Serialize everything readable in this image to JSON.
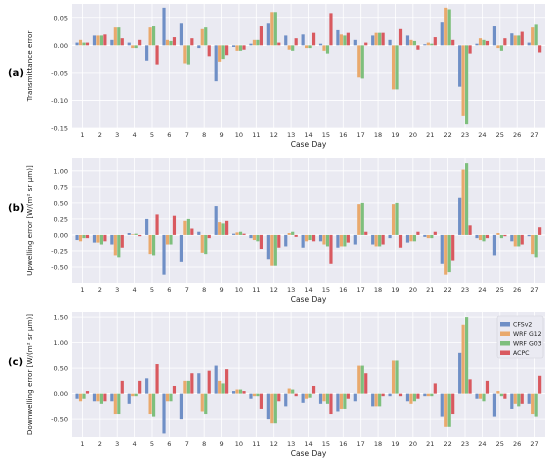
{
  "series_meta": [
    {
      "name": "CFSv2",
      "color": "#6f8fc6"
    },
    {
      "name": "WRF G12",
      "color": "#e9a96c"
    },
    {
      "name": "WRF G03",
      "color": "#7ebf7d"
    },
    {
      "name": "ACPC",
      "color": "#d9595f"
    }
  ],
  "chart_data": [
    {
      "type": "bar",
      "panel_label": "(a)",
      "xlabel": "Case Day",
      "ylabel": "Transmittance error",
      "categories": [
        "1",
        "2",
        "3",
        "4",
        "5",
        "6",
        "7",
        "8",
        "9",
        "10",
        "11",
        "12",
        "13",
        "14",
        "15",
        "16",
        "17",
        "18",
        "19",
        "20",
        "21",
        "22",
        "23",
        "24",
        "25",
        "26",
        "27"
      ],
      "ylim": [
        -0.15,
        0.075
      ],
      "yticks": [
        -0.15,
        -0.1,
        -0.05,
        0.0,
        0.05
      ],
      "ytick_labels": [
        "-0.15",
        "-0.10",
        "-0.05",
        "0.00",
        "0.05"
      ],
      "grid": true,
      "series": [
        {
          "name": "CFSv2",
          "values": [
            0.005,
            0.018,
            0.01,
            0.005,
            -0.028,
            0.068,
            0.04,
            -0.005,
            -0.065,
            -0.003,
            0.003,
            0.04,
            0.018,
            0.02,
            0.003,
            0.028,
            0.01,
            0.018,
            0.01,
            0.018,
            0.002,
            0.042,
            -0.075,
            0.003,
            0.035,
            0.022,
            0.005
          ]
        },
        {
          "name": "WRF G12",
          "values": [
            0.01,
            0.018,
            0.033,
            -0.005,
            0.033,
            0.01,
            -0.033,
            0.03,
            -0.03,
            -0.01,
            0.01,
            0.06,
            -0.008,
            -0.005,
            -0.01,
            0.02,
            -0.058,
            0.023,
            -0.08,
            0.01,
            0.005,
            0.068,
            -0.128,
            0.013,
            -0.005,
            0.018,
            0.033
          ]
        },
        {
          "name": "WRF G03",
          "values": [
            0.005,
            0.018,
            0.033,
            -0.005,
            0.035,
            0.008,
            -0.035,
            0.033,
            -0.025,
            -0.01,
            0.01,
            0.06,
            -0.01,
            -0.005,
            -0.015,
            0.018,
            -0.06,
            0.023,
            -0.08,
            0.008,
            0.003,
            0.065,
            -0.143,
            0.01,
            -0.01,
            0.018,
            0.038
          ]
        },
        {
          "name": "ACPC",
          "values": [
            0.005,
            0.02,
            0.013,
            0.01,
            -0.035,
            0.015,
            0.013,
            -0.02,
            -0.018,
            -0.008,
            0.035,
            0.005,
            0.013,
            0.023,
            0.058,
            0.023,
            0.005,
            0.023,
            0.03,
            -0.008,
            0.015,
            0.01,
            -0.015,
            0.008,
            0.013,
            0.025,
            -0.013
          ]
        }
      ]
    },
    {
      "type": "bar",
      "panel_label": "(b)",
      "xlabel": "Case Day",
      "ylabel": "Upwelling error [W/(m² sr µm)]",
      "categories": [
        "1",
        "2",
        "3",
        "4",
        "5",
        "6",
        "7",
        "8",
        "9",
        "10",
        "11",
        "12",
        "13",
        "14",
        "15",
        "16",
        "17",
        "18",
        "19",
        "20",
        "21",
        "22",
        "23",
        "24",
        "25",
        "26",
        "27"
      ],
      "ylim": [
        -0.75,
        1.2
      ],
      "yticks": [
        -0.5,
        -0.25,
        0.0,
        0.25,
        0.5,
        0.75,
        1.0
      ],
      "ytick_labels": [
        "-0.50",
        "-0.25",
        "0.00",
        "0.25",
        "0.50",
        "0.75",
        "1.00"
      ],
      "grid": true,
      "series": [
        {
          "name": "CFSv2",
          "values": [
            -0.08,
            -0.12,
            -0.15,
            0.03,
            0.25,
            -0.62,
            -0.42,
            0.05,
            0.45,
            0.02,
            -0.05,
            -0.38,
            -0.18,
            -0.2,
            -0.1,
            -0.2,
            -0.15,
            -0.15,
            -0.05,
            -0.12,
            -0.03,
            -0.45,
            0.58,
            -0.05,
            -0.32,
            -0.1,
            -0.02
          ]
        },
        {
          "name": "WRF G12",
          "values": [
            -0.1,
            -0.12,
            -0.32,
            0.01,
            -0.3,
            -0.15,
            0.22,
            -0.28,
            0.2,
            0.04,
            -0.08,
            -0.48,
            0.03,
            -0.1,
            -0.15,
            -0.18,
            0.48,
            -0.18,
            0.48,
            -0.1,
            -0.05,
            -0.62,
            1.02,
            -0.08,
            0.03,
            -0.18,
            -0.3
          ]
        },
        {
          "name": "WRF G03",
          "values": [
            -0.05,
            -0.15,
            -0.35,
            0.02,
            -0.32,
            -0.15,
            0.25,
            -0.3,
            0.18,
            0.05,
            -0.1,
            -0.48,
            0.05,
            -0.08,
            -0.18,
            -0.18,
            0.5,
            -0.18,
            0.5,
            -0.1,
            -0.05,
            -0.58,
            1.12,
            -0.1,
            -0.05,
            -0.18,
            -0.35
          ]
        },
        {
          "name": "ACPC",
          "values": [
            -0.05,
            -0.1,
            -0.2,
            -0.02,
            0.32,
            0.3,
            0.1,
            -0.05,
            0.22,
            0.02,
            -0.22,
            -0.2,
            -0.03,
            -0.1,
            -0.45,
            -0.12,
            0.05,
            -0.15,
            -0.2,
            0.05,
            0.05,
            -0.4,
            0.15,
            -0.05,
            -0.02,
            -0.15,
            0.12
          ]
        }
      ]
    },
    {
      "type": "bar",
      "panel_label": "(c)",
      "xlabel": "Case Day",
      "ylabel": "Downwelling error [W/(m² sr µm)]",
      "categories": [
        "1",
        "2",
        "3",
        "4",
        "5",
        "6",
        "7",
        "8",
        "9",
        "10",
        "11",
        "12",
        "13",
        "14",
        "15",
        "16",
        "17",
        "18",
        "19",
        "20",
        "21",
        "22",
        "23",
        "24",
        "25",
        "26",
        "27"
      ],
      "ylim": [
        -0.85,
        1.6
      ],
      "yticks": [
        -0.5,
        0.0,
        0.5,
        1.0,
        1.5
      ],
      "ytick_labels": [
        "-0.50",
        "0.00",
        "0.50",
        "1.00",
        "1.50"
      ],
      "grid": true,
      "legend": "top-right",
      "series": [
        {
          "name": "CFSv2",
          "values": [
            -0.1,
            -0.15,
            -0.15,
            -0.2,
            0.3,
            -0.78,
            -0.5,
            0.4,
            0.55,
            0.05,
            -0.1,
            -0.5,
            -0.25,
            -0.18,
            -0.2,
            -0.35,
            -0.15,
            -0.25,
            -0.05,
            -0.15,
            -0.05,
            -0.45,
            0.8,
            -0.1,
            -0.45,
            -0.3,
            -0.2
          ]
        },
        {
          "name": "WRF G12",
          "values": [
            -0.15,
            -0.15,
            -0.4,
            -0.05,
            -0.4,
            -0.15,
            0.25,
            -0.35,
            0.25,
            0.08,
            -0.05,
            -0.58,
            0.1,
            -0.1,
            -0.15,
            -0.3,
            0.55,
            -0.25,
            0.65,
            -0.2,
            -0.05,
            -0.65,
            1.35,
            -0.1,
            0.05,
            -0.2,
            -0.4
          ]
        },
        {
          "name": "WRF G03",
          "values": [
            -0.1,
            -0.2,
            -0.4,
            -0.05,
            -0.45,
            -0.15,
            0.25,
            -0.4,
            0.2,
            0.08,
            -0.05,
            -0.58,
            0.08,
            -0.08,
            -0.2,
            -0.3,
            0.55,
            -0.25,
            0.65,
            -0.15,
            -0.05,
            -0.65,
            1.5,
            -0.15,
            -0.05,
            -0.25,
            -0.45
          ]
        },
        {
          "name": "ACPC",
          "values": [
            0.05,
            -0.15,
            0.25,
            0.25,
            0.58,
            0.15,
            0.4,
            0.45,
            0.48,
            0.05,
            -0.3,
            -0.15,
            -0.05,
            0.15,
            -0.4,
            -0.1,
            0.4,
            -0.05,
            -0.05,
            -0.1,
            0.2,
            -0.4,
            0.28,
            0.25,
            -0.1,
            -0.2,
            0.35
          ]
        }
      ]
    }
  ]
}
